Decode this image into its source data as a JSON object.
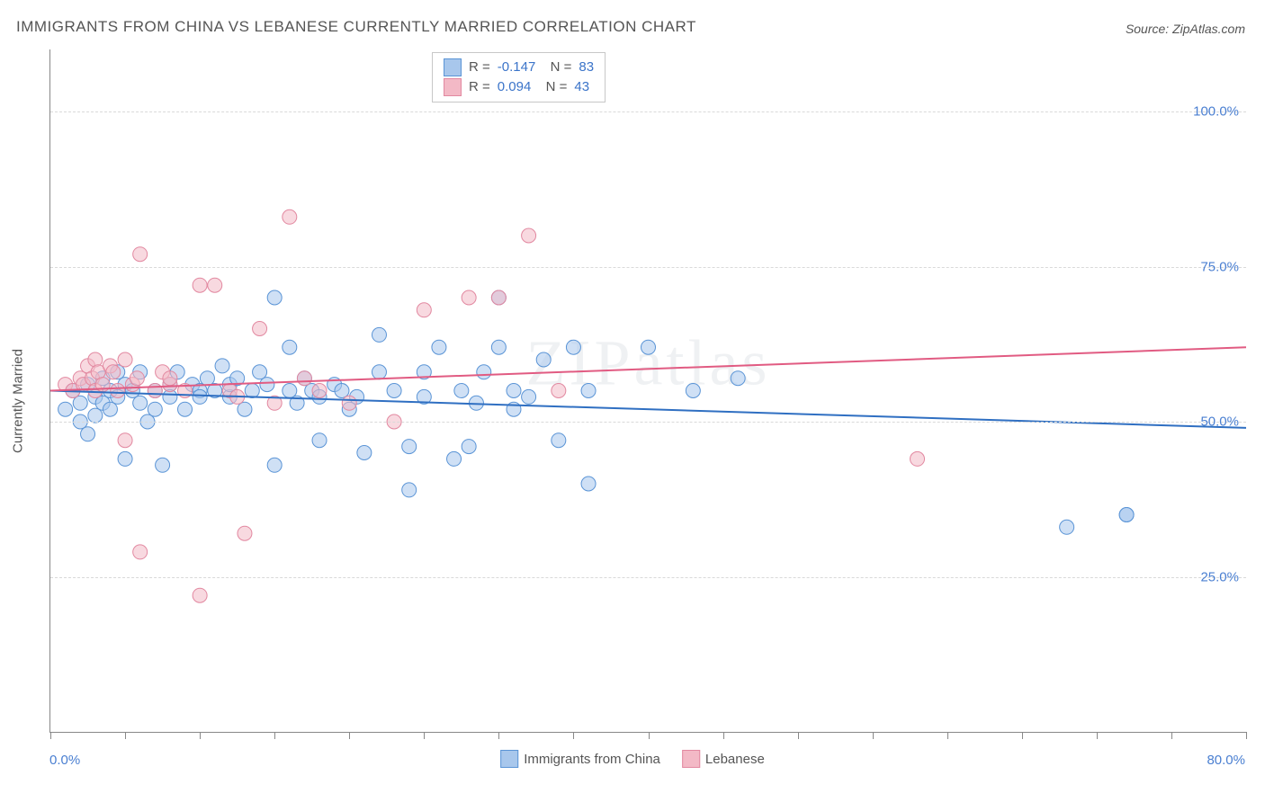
{
  "title": "IMMIGRANTS FROM CHINA VS LEBANESE CURRENTLY MARRIED CORRELATION CHART",
  "source": "Source: ZipAtlas.com",
  "watermark": "ZIPatlas",
  "ylabel": "Currently Married",
  "chart": {
    "type": "scatter",
    "background_color": "#ffffff",
    "grid_color": "#d9d9d9",
    "xlim": [
      0,
      80
    ],
    "ylim": [
      0,
      110
    ],
    "x_axis_label_min": "0.0%",
    "x_axis_label_max": "80.0%",
    "yticks": [
      {
        "v": 25,
        "label": "25.0%"
      },
      {
        "v": 50,
        "label": "50.0%"
      },
      {
        "v": 75,
        "label": "75.0%"
      },
      {
        "v": 100,
        "label": "100.0%"
      }
    ],
    "xtick_count": 17,
    "marker_radius": 8,
    "marker_opacity": 0.55,
    "line_width": 2,
    "series": [
      {
        "id": "china",
        "label": "Immigrants from China",
        "fill_color": "#a8c7ec",
        "stroke_color": "#5a94d6",
        "line_color": "#2f6fc2",
        "R": "-0.147",
        "N": "83",
        "trend": {
          "x1": 0,
          "y1": 55,
          "x2": 80,
          "y2": 49
        },
        "points": [
          [
            1,
            52
          ],
          [
            1.5,
            55
          ],
          [
            2,
            53
          ],
          [
            2,
            50
          ],
          [
            2.5,
            56
          ],
          [
            2.5,
            48
          ],
          [
            3,
            54
          ],
          [
            3,
            51
          ],
          [
            3.5,
            57
          ],
          [
            3.5,
            53
          ],
          [
            4,
            55
          ],
          [
            4,
            52
          ],
          [
            4.5,
            58
          ],
          [
            4.5,
            54
          ],
          [
            5,
            44
          ],
          [
            5,
            56
          ],
          [
            5.5,
            55
          ],
          [
            6,
            53
          ],
          [
            6,
            58
          ],
          [
            6.5,
            50
          ],
          [
            7,
            55
          ],
          [
            7,
            52
          ],
          [
            7.5,
            43
          ],
          [
            8,
            56
          ],
          [
            8,
            54
          ],
          [
            8.5,
            58
          ],
          [
            9,
            52
          ],
          [
            9.5,
            56
          ],
          [
            10,
            55
          ],
          [
            10,
            54
          ],
          [
            10.5,
            57
          ],
          [
            11,
            55
          ],
          [
            11.5,
            59
          ],
          [
            12,
            54
          ],
          [
            12,
            56
          ],
          [
            12.5,
            57
          ],
          [
            13,
            52
          ],
          [
            13.5,
            55
          ],
          [
            14,
            58
          ],
          [
            14.5,
            56
          ],
          [
            15,
            43
          ],
          [
            15,
            70
          ],
          [
            16,
            55
          ],
          [
            16,
            62
          ],
          [
            16.5,
            53
          ],
          [
            17,
            57
          ],
          [
            17.5,
            55
          ],
          [
            18,
            47
          ],
          [
            18,
            54
          ],
          [
            19,
            56
          ],
          [
            19.5,
            55
          ],
          [
            20,
            52
          ],
          [
            20.5,
            54
          ],
          [
            21,
            45
          ],
          [
            22,
            64
          ],
          [
            22,
            58
          ],
          [
            23,
            55
          ],
          [
            24,
            39
          ],
          [
            24,
            46
          ],
          [
            25,
            58
          ],
          [
            25,
            54
          ],
          [
            26,
            62
          ],
          [
            27,
            44
          ],
          [
            27.5,
            55
          ],
          [
            28,
            46
          ],
          [
            28.5,
            53
          ],
          [
            29,
            58
          ],
          [
            30,
            70
          ],
          [
            30,
            62
          ],
          [
            31,
            52
          ],
          [
            31,
            55
          ],
          [
            32,
            54
          ],
          [
            33,
            60
          ],
          [
            34,
            47
          ],
          [
            35,
            62
          ],
          [
            36,
            55
          ],
          [
            36,
            40
          ],
          [
            40,
            62
          ],
          [
            43,
            55
          ],
          [
            46,
            57
          ],
          [
            68,
            33
          ],
          [
            72,
            35
          ],
          [
            72,
            35
          ]
        ]
      },
      {
        "id": "lebanese",
        "label": "Lebanese",
        "fill_color": "#f3b9c6",
        "stroke_color": "#e288a0",
        "line_color": "#e15b82",
        "R": "0.094",
        "N": "43",
        "trend": {
          "x1": 0,
          "y1": 55,
          "x2": 80,
          "y2": 62
        },
        "points": [
          [
            1,
            56
          ],
          [
            1.5,
            55
          ],
          [
            2,
            57
          ],
          [
            2.2,
            56
          ],
          [
            2.5,
            59
          ],
          [
            2.8,
            57
          ],
          [
            3,
            60
          ],
          [
            3,
            55
          ],
          [
            3.2,
            58
          ],
          [
            3.5,
            56
          ],
          [
            4,
            59
          ],
          [
            4.2,
            58
          ],
          [
            4.5,
            55
          ],
          [
            5,
            60
          ],
          [
            5,
            47
          ],
          [
            5.5,
            56
          ],
          [
            5.8,
            57
          ],
          [
            6,
            77
          ],
          [
            6,
            29
          ],
          [
            7,
            55
          ],
          [
            7.5,
            58
          ],
          [
            8,
            56
          ],
          [
            8,
            57
          ],
          [
            9,
            55
          ],
          [
            10,
            72
          ],
          [
            10,
            22
          ],
          [
            11,
            72
          ],
          [
            12,
            55
          ],
          [
            12.5,
            54
          ],
          [
            13,
            32
          ],
          [
            14,
            65
          ],
          [
            15,
            53
          ],
          [
            16,
            83
          ],
          [
            17,
            57
          ],
          [
            18,
            55
          ],
          [
            20,
            53
          ],
          [
            23,
            50
          ],
          [
            25,
            68
          ],
          [
            28,
            70
          ],
          [
            30,
            70
          ],
          [
            32,
            80
          ],
          [
            34,
            55
          ],
          [
            58,
            44
          ]
        ]
      }
    ]
  },
  "legend_top": {
    "series_refs": [
      "china",
      "lebanese"
    ]
  }
}
